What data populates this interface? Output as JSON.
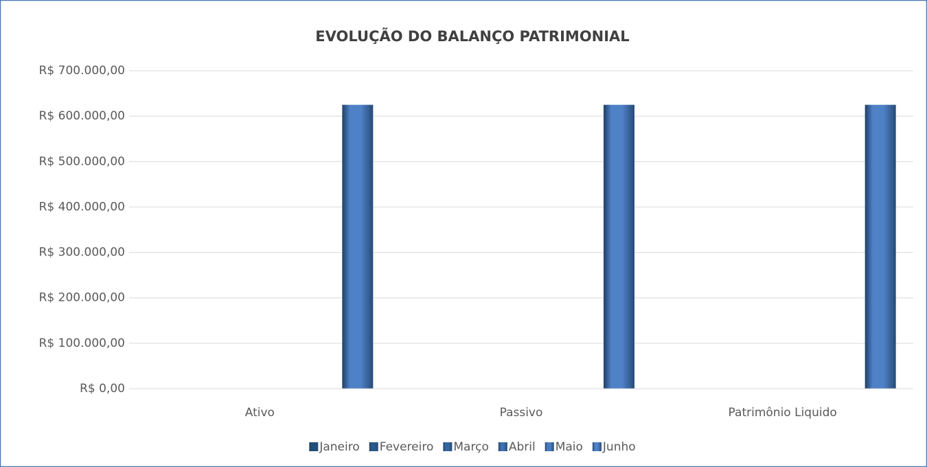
{
  "chart_data": {
    "type": "bar",
    "title": "EVOLUÇÃO DO BALANÇO PATRIMONIAL",
    "categories": [
      "Ativo",
      "Passivo",
      "Patrimônio Liquido"
    ],
    "series": [
      {
        "name": "Janeiro",
        "color": "#1f4e79",
        "values": [
          0,
          0,
          0
        ]
      },
      {
        "name": "Fevereiro",
        "color": "#2a5a8c",
        "values": [
          0,
          0,
          0
        ]
      },
      {
        "name": "Março",
        "color": "#3566a0",
        "values": [
          0,
          0,
          0
        ]
      },
      {
        "name": "Abril",
        "color": "#3f70b0",
        "values": [
          0,
          0,
          0
        ]
      },
      {
        "name": "Maio",
        "color": "#4a7cc0",
        "values": [
          0,
          0,
          0
        ]
      },
      {
        "name": "Junho",
        "color": "#4f81c7",
        "values": [
          625000,
          625000,
          625000
        ]
      }
    ],
    "ylim": [
      0,
      700000
    ],
    "yticks": [
      {
        "value": 0,
        "label": "R$ 0,00"
      },
      {
        "value": 100000,
        "label": "R$ 100.000,00"
      },
      {
        "value": 200000,
        "label": "R$ 200.000,00"
      },
      {
        "value": 300000,
        "label": "R$ 300.000,00"
      },
      {
        "value": 400000,
        "label": "R$ 400.000,00"
      },
      {
        "value": 500000,
        "label": "R$ 500.000,00"
      },
      {
        "value": 600000,
        "label": "R$ 600.000,00"
      },
      {
        "value": 700000,
        "label": "R$ 700.000,00"
      }
    ],
    "grid": true,
    "legend": "bottom"
  }
}
